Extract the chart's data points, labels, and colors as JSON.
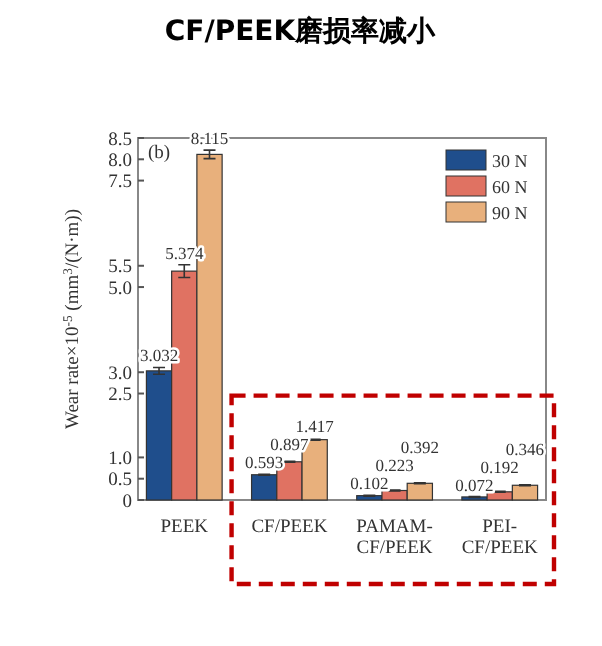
{
  "chart_data": {
    "type": "bar",
    "title": "CF/PEEK磨损率减小",
    "ylabel": "Wear rate×10$^{-5}$ (mm$^{3}$/(N·m))",
    "categories": [
      "PEEK",
      "CF/PEEK",
      "PAMAM-CF/PEEK",
      "PEI-CF/PEEK"
    ],
    "series": [
      {
        "name": "30 N",
        "color": "#1f4e8c",
        "values": [
          3.032,
          0.593,
          0.102,
          0.072
        ],
        "errors": [
          0.08,
          0.01,
          0.01,
          0.01
        ]
      },
      {
        "name": "60 N",
        "color": "#e07262",
        "values": [
          5.374,
          0.897,
          0.223,
          0.192
        ],
        "errors": [
          0.15,
          0.01,
          0.01,
          0.01
        ]
      },
      {
        "name": "90 N",
        "color": "#e8b07c",
        "values": [
          8.115,
          1.417,
          0.392,
          0.346
        ],
        "errors": [
          0.1,
          0.01,
          0.01,
          0.01
        ]
      }
    ],
    "ylim": [
      0,
      8.5
    ],
    "yticks": [
      0,
      0.5,
      {
        "value": 1,
        "label": "1.0"
      },
      2.5,
      {
        "value": 3,
        "label": "3.0"
      },
      {
        "value": 5,
        "label": "5.0"
      },
      5.5,
      7.5,
      {
        "value": 8,
        "label": "8.0"
      },
      8.5
    ],
    "data_labels": true,
    "legend": "top right",
    "grid": false,
    "annotations": [
      "(b)"
    ]
  }
}
